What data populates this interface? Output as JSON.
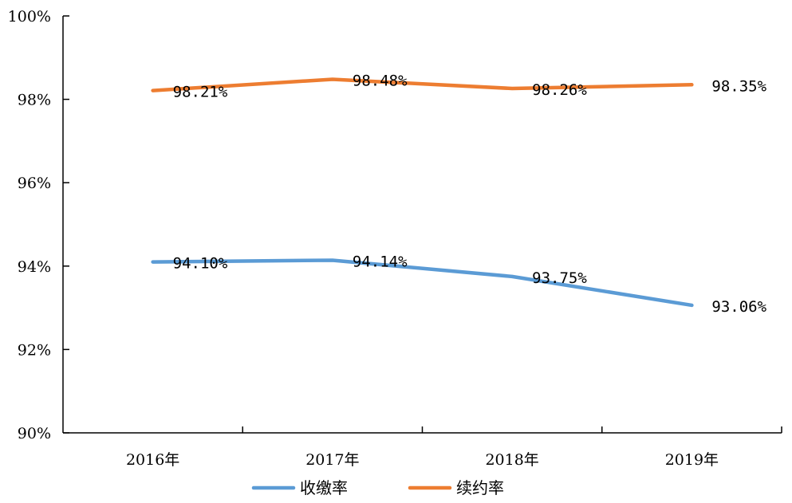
{
  "chart_data": {
    "type": "line",
    "categories": [
      "2016年",
      "2017年",
      "2018年",
      "2019年"
    ],
    "series": [
      {
        "name": "收缴率",
        "values": [
          94.1,
          94.14,
          93.75,
          93.06
        ],
        "labels": [
          "94.10%",
          "94.14%",
          "93.75%",
          "93.06%"
        ],
        "color": "#5B9BD5"
      },
      {
        "name": "续约率",
        "values": [
          98.21,
          98.48,
          98.26,
          98.35
        ],
        "labels": [
          "98.21%",
          "98.48%",
          "98.26%",
          "98.35%"
        ],
        "color": "#ED7D31"
      }
    ],
    "ylim": [
      90,
      100
    ],
    "yticks": [
      90,
      92,
      94,
      96,
      98,
      100
    ],
    "ytick_labels": [
      "90%",
      "92%",
      "94%",
      "96%",
      "98%",
      "100%"
    ],
    "grid": false,
    "legend": "bottom"
  }
}
